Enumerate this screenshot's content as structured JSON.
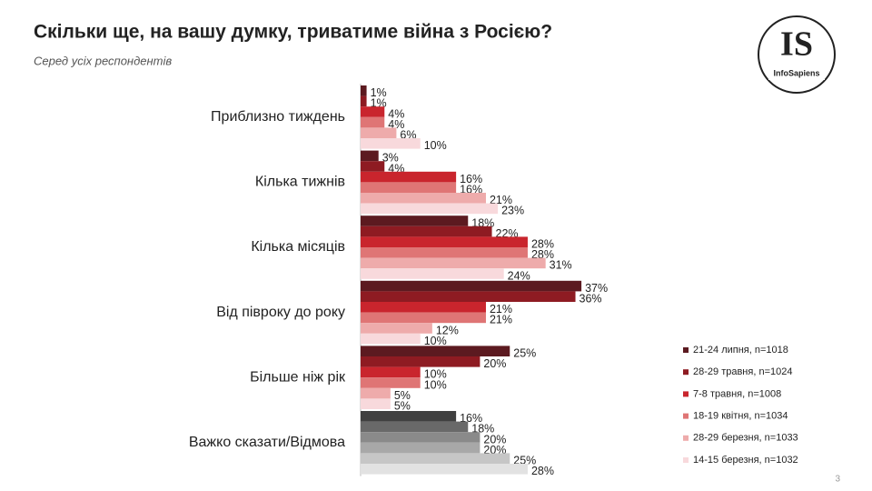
{
  "chart_data": {
    "type": "bar",
    "orientation": "horizontal",
    "title": "Скільки ще, на вашу думку, триватиме війна з Росією?",
    "subtitle": "Серед усіх респондентів",
    "logo": {
      "mark": "IS",
      "name": "InfoSapiens"
    },
    "page_number": "3",
    "legend": "right",
    "categories": [
      "Приблизно тиждень",
      "Кілька тижнів",
      "Кілька місяців",
      "Від півроку до року",
      "Більше ніж рік",
      "Важко сказати/Відмова"
    ],
    "series": [
      {
        "name": "21-24 липня, n=1018",
        "color": "#5c1a20",
        "colors": [
          "#5c1a20",
          "#5c1a20",
          "#5c1a20",
          "#5c1a20",
          "#5c1a20",
          "#404040"
        ],
        "values": [
          1,
          3,
          18,
          37,
          25,
          16
        ],
        "value_labels": [
          "1%",
          "3%",
          "18%",
          "37%",
          "25%",
          "16%"
        ]
      },
      {
        "name": "28-29 травня, n=1024",
        "color": "#8e1b22",
        "colors": [
          "#8e1b22",
          "#8e1b22",
          "#8e1b22",
          "#8e1b22",
          "#8e1b22",
          "#696969"
        ],
        "values": [
          1,
          4,
          22,
          36,
          20,
          18
        ],
        "value_labels": [
          "1%",
          "4%",
          "22%",
          "36%",
          "20%",
          "18%"
        ]
      },
      {
        "name": "7-8 травня, n=1008",
        "color": "#c9252d",
        "colors": [
          "#c9252d",
          "#c9252d",
          "#c9252d",
          "#c9252d",
          "#c9252d",
          "#8a8a8a"
        ],
        "values": [
          4,
          16,
          28,
          21,
          10,
          20
        ],
        "value_labels": [
          "4%",
          "16%",
          "28%",
          "21%",
          "10%",
          "20%"
        ]
      },
      {
        "name": "18-19 квітня, n=1034",
        "color": "#df7575",
        "colors": [
          "#df7575",
          "#df7575",
          "#df7575",
          "#df7575",
          "#df7575",
          "#a8a8a8"
        ],
        "values": [
          4,
          16,
          28,
          21,
          10,
          20
        ],
        "value_labels": [
          "4%",
          "16%",
          "28%",
          "21%",
          "10%",
          "20%"
        ]
      },
      {
        "name": "28-29 березня, n=1033",
        "color": "#eeabab",
        "colors": [
          "#eeabab",
          "#eeabab",
          "#eeabab",
          "#eeabab",
          "#eeabab",
          "#c6c6c6"
        ],
        "values": [
          6,
          21,
          31,
          12,
          5,
          25
        ],
        "value_labels": [
          "6%",
          "21%",
          "31%",
          "12%",
          "5%",
          "25%"
        ]
      },
      {
        "name": "14-15 березня, n=1032",
        "color": "#f8d9dc",
        "colors": [
          "#f8d9dc",
          "#f8d9dc",
          "#f8d9dc",
          "#f8d9dc",
          "#f8d9dc",
          "#e2e2e2"
        ],
        "values": [
          10,
          23,
          24,
          10,
          5,
          28
        ],
        "value_labels": [
          "10%",
          "23%",
          "24%",
          "10%",
          "5%",
          "28%"
        ]
      }
    ]
  }
}
